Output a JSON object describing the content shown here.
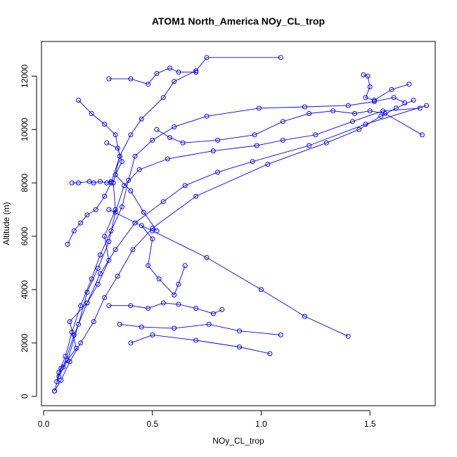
{
  "chart_data": {
    "type": "line",
    "title": "ATOM1 North_America NOy_CL_trop",
    "xlabel": "NOy_CL_trop",
    "ylabel": "Altitude (m)",
    "xlim": [
      -0.01,
      1.8
    ],
    "ylim": [
      -350,
      13300
    ],
    "xticks": [
      0.0,
      0.5,
      1.0,
      1.5
    ],
    "xtick_labels": [
      "0.0",
      "0.5",
      "1.0",
      "1.5"
    ],
    "yticks": [
      0,
      2000,
      4000,
      6000,
      8000,
      10000,
      12000
    ],
    "ytick_labels": [
      "0",
      "2000",
      "4000",
      "6000",
      "8000",
      "10000",
      "12000"
    ],
    "grid": false,
    "legend": "none",
    "series_color": "#0000ff",
    "series": [
      {
        "x": [
          0.05,
          0.08,
          0.15,
          0.12,
          0.2,
          0.25,
          0.3,
          0.28,
          0.33,
          0.32,
          0.35,
          0.4,
          0.45,
          0.55,
          0.6,
          0.7,
          0.75,
          1.09
        ],
        "y": [
          200,
          1050,
          1800,
          2800,
          3500,
          4200,
          5100,
          6000,
          7000,
          8000,
          9000,
          9800,
          10400,
          11200,
          11800,
          12200,
          12700,
          12700
        ]
      },
      {
        "x": [
          0.06,
          0.07,
          0.1,
          0.13,
          0.17,
          0.22,
          0.26,
          0.31,
          0.36,
          0.39,
          0.42,
          0.5,
          0.6,
          0.75,
          0.99,
          1.2,
          1.4,
          1.52,
          1.61,
          1.66
        ],
        "y": [
          550,
          900,
          1500,
          2400,
          3400,
          4400,
          5300,
          6200,
          7100,
          8100,
          9000,
          9600,
          10100,
          10500,
          10800,
          10850,
          10900,
          11050,
          11200,
          11000
        ]
      },
      {
        "x": [
          0.05,
          0.08,
          0.12,
          0.17,
          0.23,
          0.28,
          0.34,
          0.41,
          0.5,
          0.7,
          1.03,
          1.3,
          1.45,
          1.55,
          1.62,
          1.7
        ],
        "y": [
          200,
          600,
          1300,
          2000,
          2800,
          3700,
          4500,
          5500,
          6300,
          7500,
          8700,
          9500,
          10000,
          10500,
          10800,
          11100
        ]
      },
      {
        "x": [
          0.07,
          0.11,
          0.16,
          0.2,
          0.25,
          0.3,
          0.33,
          0.37,
          0.44,
          0.57,
          0.78,
          0.98,
          1.1,
          1.25,
          1.42,
          1.56,
          1.73
        ],
        "y": [
          750,
          1350,
          2700,
          3900,
          4800,
          5800,
          6900,
          7900,
          8500,
          8900,
          9200,
          9400,
          9600,
          9800,
          10300,
          10700,
          10800
        ]
      },
      {
        "x": [
          0.09,
          0.14,
          0.2,
          0.26,
          0.33,
          0.42,
          0.55,
          0.65,
          0.8,
          0.96,
          1.22,
          1.48,
          1.76
        ],
        "y": [
          1100,
          2300,
          3500,
          4600,
          5500,
          6500,
          7300,
          7900,
          8400,
          8800,
          9400,
          10200,
          10900
        ]
      },
      {
        "x": [
          0.52,
          0.58,
          0.64,
          0.8,
          0.97,
          1.1,
          1.22,
          1.33,
          1.43,
          1.5,
          1.57,
          1.74
        ],
        "y": [
          10000,
          9700,
          9500,
          9600,
          9800,
          10300,
          10600,
          10700,
          10600,
          10700,
          10600,
          9800
        ]
      },
      {
        "x": [
          0.16,
          0.22,
          0.28,
          0.33,
          0.35,
          0.31,
          0.28,
          0.24,
          0.2,
          0.17,
          0.14,
          0.11
        ],
        "y": [
          11100,
          10600,
          10200,
          9800,
          9000,
          8000,
          7500,
          7000,
          6800,
          6500,
          6200,
          5700
        ]
      },
      {
        "x": [
          0.3,
          0.4,
          0.48,
          0.52,
          0.58,
          0.62,
          0.7
        ],
        "y": [
          11900,
          11900,
          11700,
          12100,
          12300,
          12150,
          12150
        ]
      },
      {
        "x": [
          1.47,
          1.49,
          1.5,
          1.48,
          1.52,
          1.6,
          1.68
        ],
        "y": [
          12050,
          12000,
          11600,
          11200,
          11100,
          11500,
          11700
        ]
      },
      {
        "x": [
          0.29,
          0.34,
          0.36,
          0.33,
          0.4,
          0.46,
          0.52
        ],
        "y": [
          9500,
          9300,
          8800,
          8300,
          7700,
          6900,
          6200
        ]
      },
      {
        "x": [
          0.45,
          0.5,
          0.48,
          0.53,
          0.6,
          0.62,
          0.65
        ],
        "y": [
          6400,
          5900,
          4900,
          4400,
          3800,
          4200,
          4900
        ]
      },
      {
        "x": [
          0.3,
          0.4,
          0.48,
          0.55,
          0.62,
          0.7,
          0.78,
          0.82
        ],
        "y": [
          3400,
          3400,
          3300,
          3500,
          3450,
          3300,
          3100,
          3250
        ]
      },
      {
        "x": [
          0.35,
          0.45,
          0.6,
          0.76,
          0.9,
          1.09
        ],
        "y": [
          2700,
          2600,
          2550,
          2700,
          2450,
          2300
        ]
      },
      {
        "x": [
          0.4,
          0.5,
          0.7,
          0.9,
          1.04
        ],
        "y": [
          2000,
          2300,
          2100,
          1850,
          1600
        ]
      },
      {
        "x": [
          0.3,
          0.5,
          0.75,
          1.0,
          1.2,
          1.4
        ],
        "y": [
          7000,
          6200,
          5200,
          4000,
          3000,
          2250
        ]
      },
      {
        "x": [
          0.13,
          0.16,
          0.21,
          0.23,
          0.26,
          0.29,
          0.31
        ],
        "y": [
          8000,
          8000,
          8050,
          8000,
          8050,
          8000,
          8050
        ]
      }
    ]
  }
}
